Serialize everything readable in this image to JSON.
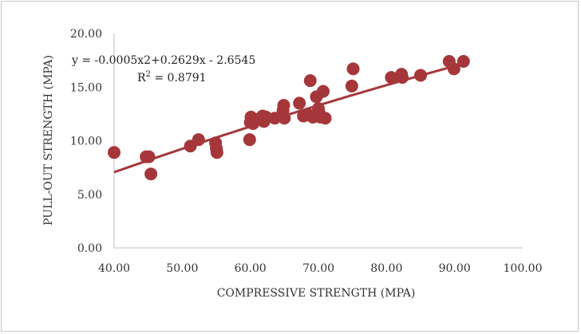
{
  "chart_data": {
    "type": "scatter",
    "xlabel": "COMPRESSIVE STRENGTH (MPA)",
    "ylabel": "PULL-OUT STRENGTH (MPA)",
    "xlim": [
      40,
      100
    ],
    "ylim": [
      0,
      20
    ],
    "x_ticks": [
      "40.00",
      "50.00",
      "60.00",
      "70.00",
      "80.00",
      "90.00",
      "100.00"
    ],
    "y_ticks": [
      "0.00",
      "5.00",
      "10.00",
      "15.00",
      "20.00"
    ],
    "grid": false,
    "legend": "none",
    "marker_color": "#A5373A",
    "trendline": {
      "color": "#A5373A",
      "equation": "y = -0.0005x2+0.2629x - 2.6545",
      "r2_prefix": "R",
      "r2_sup": "2",
      "r2_value": " = 0.8791",
      "a": -0.0005,
      "b": 0.2629,
      "c": -2.6545,
      "x_start": 40,
      "x_end": 91
    },
    "points": [
      {
        "x": 40.0,
        "y": 8.9
      },
      {
        "x": 44.7,
        "y": 8.5
      },
      {
        "x": 45.1,
        "y": 8.5
      },
      {
        "x": 45.4,
        "y": 6.9
      },
      {
        "x": 51.2,
        "y": 9.5
      },
      {
        "x": 52.4,
        "y": 10.1
      },
      {
        "x": 54.9,
        "y": 9.8
      },
      {
        "x": 55.0,
        "y": 9.3
      },
      {
        "x": 55.1,
        "y": 8.9
      },
      {
        "x": 59.9,
        "y": 10.1
      },
      {
        "x": 60.0,
        "y": 11.7
      },
      {
        "x": 60.1,
        "y": 12.2
      },
      {
        "x": 60.4,
        "y": 11.6
      },
      {
        "x": 61.2,
        "y": 12.0
      },
      {
        "x": 61.8,
        "y": 12.3
      },
      {
        "x": 62.0,
        "y": 11.8
      },
      {
        "x": 62.3,
        "y": 12.2
      },
      {
        "x": 63.6,
        "y": 12.1
      },
      {
        "x": 64.8,
        "y": 12.8
      },
      {
        "x": 64.9,
        "y": 13.3
      },
      {
        "x": 65.0,
        "y": 12.1
      },
      {
        "x": 67.2,
        "y": 13.5
      },
      {
        "x": 67.8,
        "y": 12.3
      },
      {
        "x": 68.6,
        "y": 12.4
      },
      {
        "x": 68.8,
        "y": 15.6
      },
      {
        "x": 69.2,
        "y": 12.2
      },
      {
        "x": 69.7,
        "y": 14.1
      },
      {
        "x": 70.0,
        "y": 13.0
      },
      {
        "x": 70.1,
        "y": 12.6
      },
      {
        "x": 70.3,
        "y": 12.2
      },
      {
        "x": 70.7,
        "y": 14.6
      },
      {
        "x": 71.0,
        "y": 12.1
      },
      {
        "x": 74.9,
        "y": 15.1
      },
      {
        "x": 75.1,
        "y": 16.7
      },
      {
        "x": 80.7,
        "y": 15.9
      },
      {
        "x": 82.2,
        "y": 16.2
      },
      {
        "x": 82.3,
        "y": 15.9
      },
      {
        "x": 85.0,
        "y": 16.1
      },
      {
        "x": 89.2,
        "y": 17.4
      },
      {
        "x": 89.9,
        "y": 16.7
      },
      {
        "x": 91.3,
        "y": 17.4
      }
    ]
  }
}
